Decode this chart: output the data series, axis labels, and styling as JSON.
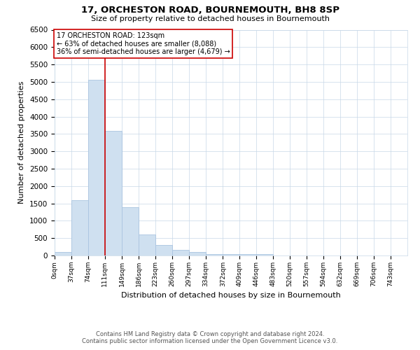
{
  "title1": "17, ORCHESTON ROAD, BOURNEMOUTH, BH8 8SP",
  "title2": "Size of property relative to detached houses in Bournemouth",
  "xlabel": "Distribution of detached houses by size in Bournemouth",
  "ylabel": "Number of detached properties",
  "footnote1": "Contains HM Land Registry data © Crown copyright and database right 2024.",
  "footnote2": "Contains public sector information licensed under the Open Government Licence v3.0.",
  "annotation_line1": "17 ORCHESTON ROAD: 123sqm",
  "annotation_line2": "← 63% of detached houses are smaller (8,088)",
  "annotation_line3": "36% of semi-detached houses are larger (4,679) →",
  "bar_edge_color": "#aac4e0",
  "bar_face_color": "#cfe0f0",
  "vline_color": "#cc0000",
  "annotation_box_edge": "#cc0000",
  "annotation_box_face": "#ffffff",
  "grid_color": "#c8d8e8",
  "bins": [
    0,
    37,
    74,
    111,
    149,
    186,
    223,
    260,
    297,
    334,
    372,
    409,
    446,
    483,
    520,
    557,
    594,
    632,
    669,
    706,
    743
  ],
  "counts": [
    100,
    1600,
    5050,
    3580,
    1400,
    600,
    300,
    160,
    110,
    50,
    50,
    50,
    40,
    0,
    0,
    0,
    0,
    0,
    0,
    0
  ],
  "ylim": [
    0,
    6500
  ],
  "yticks": [
    0,
    500,
    1000,
    1500,
    2000,
    2500,
    3000,
    3500,
    4000,
    4500,
    5000,
    5500,
    6000,
    6500
  ],
  "bg_color": "#ffffff",
  "vline_x": 111,
  "fig_width": 6.0,
  "fig_height": 5.0,
  "dpi": 100
}
